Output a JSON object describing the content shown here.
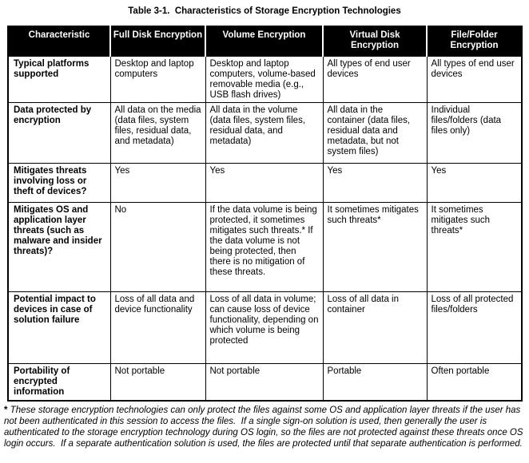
{
  "title": "Table 3-1.  Characteristics of Storage Encryption Technologies",
  "table": {
    "columns": [
      "Characteristic",
      "Full Disk Encryption",
      "Volume Encryption",
      "Virtual Disk Encryption",
      "File/Folder Encryption"
    ],
    "rows": [
      {
        "characteristic": "Typical platforms supported",
        "cells": [
          "Desktop and laptop computers",
          "Desktop and laptop computers, volume-based removable media (e.g., USB flash drives)",
          "All types of end user devices",
          "All types of end user devices"
        ]
      },
      {
        "characteristic": "Data protected by encryption",
        "cells": [
          "All data on the media (data files, system files, residual data, and metadata)",
          "All data in the volume (data files, system files, residual data, and metadata)",
          "All data in the container (data files, residual data and metadata, but not system files)",
          "Individual files/folders (data files only)"
        ]
      },
      {
        "characteristic": "Mitigates threats involving loss or theft of devices?",
        "cells": [
          "Yes",
          "Yes",
          "Yes",
          "Yes"
        ]
      },
      {
        "characteristic": "Mitigates OS and application layer threats (such as malware and insider threats)?",
        "cells": [
          "No",
          "If the data volume is being protected, it sometimes mitigates such threats.* If the data volume is not being protected, then there is no mitigation of these threats.",
          "It sometimes mitigates such threats*",
          "It sometimes mitigates such threats*"
        ]
      },
      {
        "characteristic": "Potential impact to devices in case of solution failure",
        "cells": [
          "Loss of all data and device functionality",
          "Loss of all data in volume; can cause loss of device functionality, depending on which volume is being protected",
          "Loss of all data in container",
          "Loss of all protected files/folders"
        ]
      },
      {
        "characteristic": "Portability of encrypted information",
        "cells": [
          "Not portable",
          "Not portable",
          "Portable",
          "Often portable"
        ]
      }
    ]
  },
  "footnote": {
    "marker": "*",
    "text": " These storage encryption technologies can only protect the files against some OS and application layer threats if the user has not been authenticated in this session to access the files.  If a single sign-on solution is used, then generally the user is authenticated to the storage encryption technology during OS login, so the files are not protected against these threats once OS login occurs.  If a separate authentication solution is used, the files are protected until that separate authentication is performed."
  },
  "colors": {
    "header_bg": "#000000",
    "header_text": "#ffffff",
    "body_text": "#000000",
    "border": "#000000",
    "page_bg": "#ffffff"
  }
}
